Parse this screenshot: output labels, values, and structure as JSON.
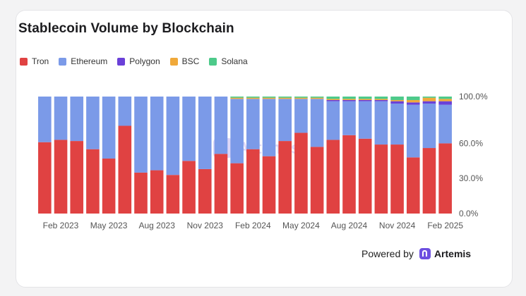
{
  "chart_data": {
    "type": "bar",
    "stacked": true,
    "normalized": true,
    "title": "Stablecoin Volume by Blockchain",
    "categories": [
      "Jan 2023",
      "Feb 2023",
      "Mar 2023",
      "Apr 2023",
      "May 2023",
      "Jun 2023",
      "Jul 2023",
      "Aug 2023",
      "Sep 2023",
      "Oct 2023",
      "Nov 2023",
      "Dec 2023",
      "Jan 2024",
      "Feb 2024",
      "Mar 2024",
      "Apr 2024",
      "May 2024",
      "Jun 2024",
      "Jul 2024",
      "Aug 2024",
      "Sep 2024",
      "Oct 2024",
      "Nov 2024",
      "Dec 2024",
      "Jan 2025",
      "Feb 2025"
    ],
    "x_tick_labels": [
      "Feb 2023",
      "May 2023",
      "Aug 2023",
      "Nov 2023",
      "Feb 2024",
      "May 2024",
      "Aug 2024",
      "Nov 2024",
      "Feb 2025"
    ],
    "y_tick_labels": [
      "0.0%",
      "30.0%",
      "60.0%",
      "100.0%"
    ],
    "y_ticks": [
      0,
      30,
      60,
      100
    ],
    "ylim": [
      0,
      100
    ],
    "legend_position": "top-left",
    "series": [
      {
        "name": "Tron",
        "color": "#e04242",
        "values": [
          61,
          63,
          62,
          55,
          47,
          75,
          35,
          37,
          33,
          45,
          38,
          51,
          43,
          55,
          49,
          62,
          69,
          57,
          63,
          67,
          64,
          59,
          59,
          48,
          56,
          60
        ]
      },
      {
        "name": "Ethereum",
        "color": "#7b9ae8",
        "values": [
          39,
          37,
          38,
          45,
          53,
          25,
          65,
          63,
          67,
          55,
          62,
          49,
          55,
          43,
          49,
          36,
          29,
          41,
          33,
          29,
          32,
          37,
          35,
          45,
          38,
          33
        ]
      },
      {
        "name": "Polygon",
        "color": "#6a40d8",
        "values": [
          0,
          0,
          0,
          0,
          0,
          0,
          0,
          0,
          0,
          0,
          0,
          0,
          0,
          0,
          0,
          0,
          0,
          0,
          1,
          1,
          1,
          1,
          2,
          2,
          2,
          3
        ]
      },
      {
        "name": "BSC",
        "color": "#f0a93a",
        "values": [
          0,
          0,
          0,
          0,
          0,
          0,
          0,
          0,
          0,
          0,
          0,
          0,
          1,
          1,
          1,
          1,
          1,
          1,
          1,
          1,
          1,
          1,
          1,
          2,
          3,
          2
        ]
      },
      {
        "name": "Solana",
        "color": "#4dca8a",
        "values": [
          0,
          0,
          0,
          0,
          0,
          0,
          0,
          0,
          0,
          0,
          0,
          0,
          1,
          1,
          1,
          1,
          1,
          1,
          2,
          2,
          2,
          2,
          3,
          3,
          1,
          2
        ]
      }
    ],
    "watermark": "Artemis"
  },
  "footer": {
    "powered_by": "Powered by",
    "brand": "Artemis"
  }
}
